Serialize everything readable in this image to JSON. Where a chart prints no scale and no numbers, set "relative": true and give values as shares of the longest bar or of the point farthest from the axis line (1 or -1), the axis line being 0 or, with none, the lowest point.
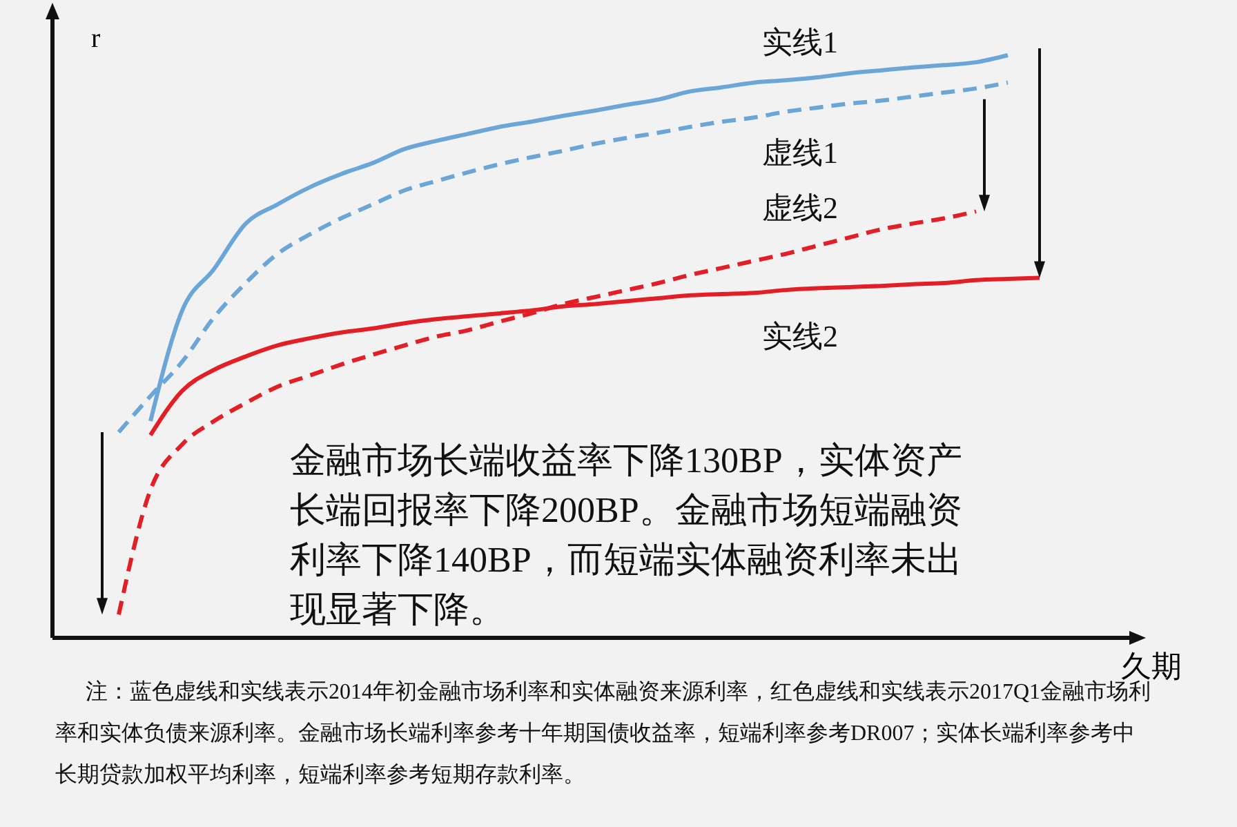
{
  "chart_data": {
    "type": "line",
    "relative": true,
    "xlabel": "久期",
    "ylabel": "r",
    "categories": [
      null,
      null,
      null,
      null,
      null,
      null,
      null,
      null,
      null,
      null,
      null,
      null,
      null,
      null,
      null,
      null,
      null,
      null,
      null,
      null,
      null,
      null,
      null,
      null,
      null,
      null,
      null,
      null,
      null,
      null
    ],
    "series": [
      {
        "name": "实线1",
        "color": "#6aa6d8",
        "line_style": "solid",
        "values": [
          null,
          0.372,
          0.562,
          0.633,
          0.711,
          0.744,
          0.773,
          0.796,
          0.815,
          0.839,
          0.853,
          0.865,
          0.877,
          0.886,
          0.896,
          0.905,
          0.915,
          0.924,
          0.938,
          0.945,
          0.953,
          0.957,
          0.962,
          0.969,
          0.974,
          0.979,
          0.983,
          0.988,
          1.0,
          null
        ]
      },
      {
        "name": "虚线1",
        "color": "#6aa6d8",
        "line_style": "dashed",
        "values": [
          0.353,
          0.415,
          0.474,
          0.55,
          0.609,
          0.659,
          0.692,
          0.72,
          0.744,
          0.768,
          0.784,
          0.799,
          0.813,
          0.825,
          0.836,
          0.848,
          0.858,
          0.867,
          0.877,
          0.886,
          0.893,
          0.903,
          0.91,
          0.917,
          0.922,
          0.929,
          0.936,
          0.943,
          0.953,
          null
        ]
      },
      {
        "name": "虚线2",
        "color": "#e31e24",
        "line_style": "dashed",
        "values": [
          0.04,
          0.254,
          0.332,
          0.372,
          0.403,
          0.431,
          0.45,
          0.469,
          0.486,
          0.502,
          0.517,
          0.528,
          0.543,
          0.557,
          0.573,
          0.585,
          0.597,
          0.609,
          0.623,
          0.635,
          0.647,
          0.659,
          0.673,
          0.687,
          0.701,
          0.711,
          0.72,
          0.732,
          null,
          null
        ]
      },
      {
        "name": "实线2",
        "color": "#e31e24",
        "line_style": "solid",
        "values": [
          null,
          0.348,
          0.424,
          0.46,
          0.483,
          0.502,
          0.514,
          0.524,
          0.531,
          0.54,
          0.547,
          0.552,
          0.557,
          0.562,
          0.569,
          0.573,
          0.578,
          0.583,
          0.588,
          0.59,
          0.592,
          0.597,
          0.6,
          0.602,
          0.604,
          0.607,
          0.609,
          0.614,
          0.616,
          0.618
        ]
      }
    ],
    "annotations": [
      "金融市场长端收益率下降130BP，实体资产长端回报率下降200BP。金融市场短端融资利率下降140BP，而短端实体融资利率未出现显著下降。",
      "注：蓝色虚线和实线表示2014年初金融市场利率和实体融资来源利率，红色虚线和实线表示2017Q1金融市场利率和实体负债来源利率。金融市场长端利率参考十年期国债收益率，短端利率参考DR007；实体长端利率参考中长期贷款加权平均利率，短端利率参考短期存款利率。"
    ]
  }
}
